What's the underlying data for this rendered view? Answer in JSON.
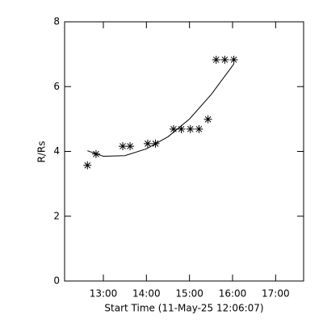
{
  "chart_data": {
    "type": "scatter",
    "x_label": "Start Time (11-May-25 12:06:07)",
    "y_label": "R/Rs",
    "xlim": [
      12.1,
      17.65
    ],
    "xticks": [
      {
        "value": 13,
        "label": "13:00"
      },
      {
        "value": 14,
        "label": "14:00"
      },
      {
        "value": 15,
        "label": "15:00"
      },
      {
        "value": 16,
        "label": "16:00"
      },
      {
        "value": 17,
        "label": "17:00"
      }
    ],
    "ylim": [
      0,
      8
    ],
    "yticks": [
      0,
      2,
      4,
      6,
      8
    ],
    "color": "#000000",
    "series": [
      {
        "type": "scatter",
        "marker": "asterisk",
        "x": [
          12.63,
          12.83,
          13.45,
          13.62,
          14.03,
          14.21,
          14.63,
          14.81,
          15.02,
          15.22,
          15.43,
          15.62,
          15.82,
          16.03
        ],
        "values": [
          3.57,
          3.92,
          4.16,
          4.16,
          4.24,
          4.24,
          4.69,
          4.69,
          4.69,
          4.69,
          4.99,
          6.83,
          6.83,
          6.83
        ]
      },
      {
        "type": "line",
        "x": [
          12.63,
          13.0,
          13.5,
          14.0,
          14.5,
          15.0,
          15.5,
          16.03
        ],
        "values": [
          4.02,
          3.85,
          3.87,
          4.08,
          4.45,
          5.0,
          5.75,
          6.7
        ]
      }
    ]
  }
}
